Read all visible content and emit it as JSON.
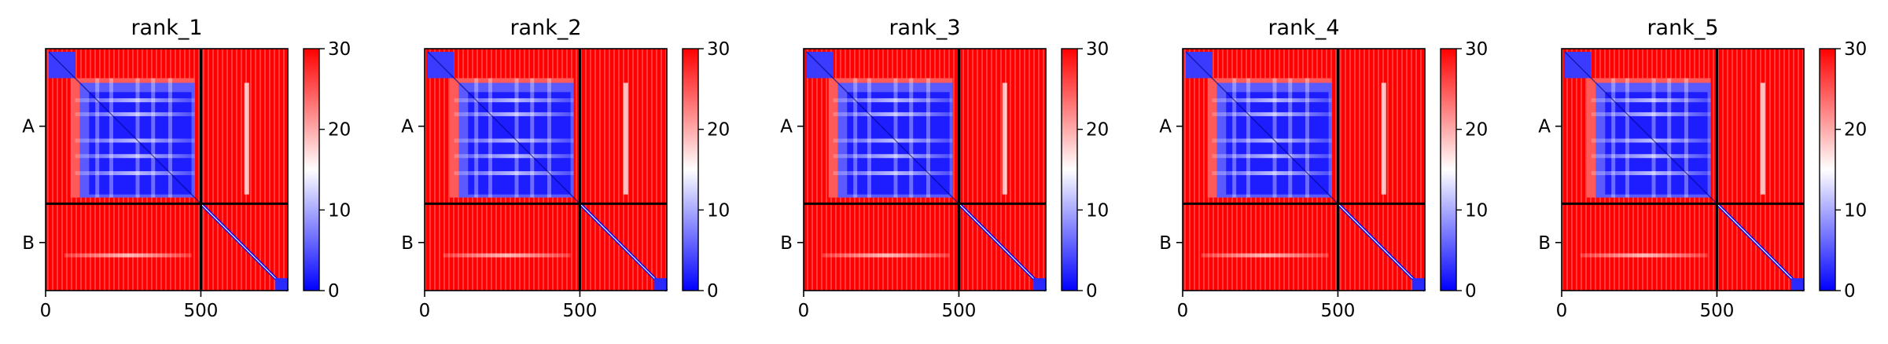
{
  "chart_data": {
    "type": "heatmap",
    "chain_ticks": [
      {
        "label": "A",
        "position": 250
      },
      {
        "label": "B",
        "position": 625
      }
    ],
    "chain_boundary": 500,
    "x_ticks": [
      0,
      500
    ],
    "xlim": [
      0,
      780
    ],
    "ylim": [
      780,
      0
    ],
    "colorbar": {
      "min": 0,
      "max": 30,
      "ticks": [
        0,
        10,
        20,
        30
      ],
      "colors": [
        "#0000ff",
        "#ffffff",
        "#ff0000"
      ]
    },
    "panels": [
      {
        "title": "rank_1"
      },
      {
        "title": "rank_2"
      },
      {
        "title": "rank_3"
      },
      {
        "title": "rank_4"
      },
      {
        "title": "rank_5"
      }
    ]
  }
}
